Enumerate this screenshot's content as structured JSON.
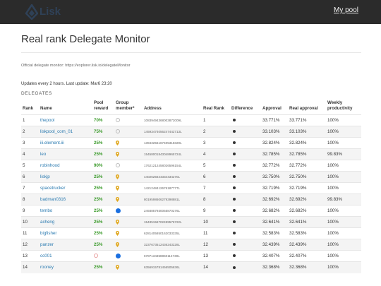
{
  "header": {
    "logo_text": "Lisk",
    "my_pool": "My pool"
  },
  "page": {
    "title": "Real rank Delegate Monitor",
    "official": "Official delegate monitor: https://explorer.lisk.io/delegateMonitor",
    "updates": "Updates every 2 hours. Last update: Mar6 23:20",
    "section": "DELEGATES"
  },
  "columns": {
    "rank": "Rank",
    "name": "Name",
    "pool_reward": "Pool reward",
    "group_member": "Group member*",
    "address": "Address",
    "real_rank": "Real Rank",
    "difference": "Difference",
    "approval": "Approval",
    "real_approval": "Real approval",
    "weekly": "Weekly productivity"
  },
  "rows": [
    {
      "rank": "1",
      "name": "thepool",
      "reward": "70%",
      "group": "empty",
      "address": "10839494368003872009L",
      "real_rank": "1",
      "approval": "33.771%",
      "real_approval": "33.771%",
      "weekly": "100%"
    },
    {
      "rank": "2",
      "name": "liskpool_com_01",
      "reward": "75%",
      "group": "empty",
      "address": "14593474056247442713L",
      "real_rank": "2",
      "approval": "33.103%",
      "real_approval": "33.103%",
      "weekly": "100%"
    },
    {
      "rank": "3",
      "name": "iii.element.iii",
      "reward": "25%",
      "group": "pin",
      "address": "13943256167405318320L",
      "real_rank": "3",
      "approval": "32.824%",
      "real_approval": "32.824%",
      "weekly": "100%"
    },
    {
      "rank": "4",
      "name": "leo",
      "reward": "25%",
      "group": "pin",
      "address": "15458001843048965724L",
      "real_rank": "4",
      "approval": "32.785%",
      "real_approval": "32.785%",
      "weekly": "99.83%"
    },
    {
      "rank": "5",
      "name": "robinhood",
      "reward": "90%",
      "group": "empty",
      "address": "17621212458026596154L",
      "real_rank": "5",
      "approval": "32.772%",
      "real_approval": "32.772%",
      "weekly": "100%"
    },
    {
      "rank": "6",
      "name": "liskjp",
      "reward": "25%",
      "group": "pin",
      "address": "4402625644334434270L",
      "real_rank": "6",
      "approval": "32.750%",
      "real_approval": "32.750%",
      "weekly": "100%"
    },
    {
      "rank": "7",
      "name": "spacetrucker",
      "reward": "25%",
      "group": "pin",
      "address": "1421248412676187777L",
      "real_rank": "7",
      "approval": "32.719%",
      "real_approval": "32.719%",
      "weekly": "100%"
    },
    {
      "rank": "8",
      "name": "badman0316",
      "reward": "25%",
      "group": "pin",
      "address": "8019598606279398881L",
      "real_rank": "8",
      "approval": "32.692%",
      "real_approval": "32.692%",
      "weekly": "99.83%"
    },
    {
      "rank": "9",
      "name": "tembo",
      "reward": "25%",
      "group": "blue",
      "address": "2493857930055870276L",
      "real_rank": "9",
      "approval": "32.682%",
      "real_approval": "32.682%",
      "weekly": "100%"
    },
    {
      "rank": "10",
      "name": "acheng",
      "reward": "25%",
      "group": "pin",
      "address": "15435156702499576722L",
      "real_rank": "10",
      "approval": "32.641%",
      "real_approval": "32.641%",
      "weekly": "100%"
    },
    {
      "rank": "11",
      "name": "bigfisher",
      "reward": "25%",
      "group": "pin",
      "address": "6281405850162033335L",
      "real_rank": "11",
      "approval": "32.583%",
      "real_approval": "32.583%",
      "weekly": "100%"
    },
    {
      "rank": "12",
      "name": "panzer",
      "reward": "25%",
      "group": "pin",
      "address": "3237673512436243228L",
      "real_rank": "12",
      "approval": "32.439%",
      "real_approval": "32.439%",
      "weekly": "100%"
    },
    {
      "rank": "13",
      "name": "cc001",
      "reward": "",
      "group": "red-blue",
      "address": "6787134358850114730L",
      "real_rank": "13",
      "approval": "32.407%",
      "real_approval": "32.407%",
      "weekly": "100%"
    },
    {
      "rank": "14",
      "name": "rooney",
      "reward": "25%",
      "group": "pin",
      "address": "6356915781456505636L",
      "real_rank": "14",
      "approval": "32.368%",
      "real_approval": "32.368%",
      "weekly": "100%"
    }
  ]
}
